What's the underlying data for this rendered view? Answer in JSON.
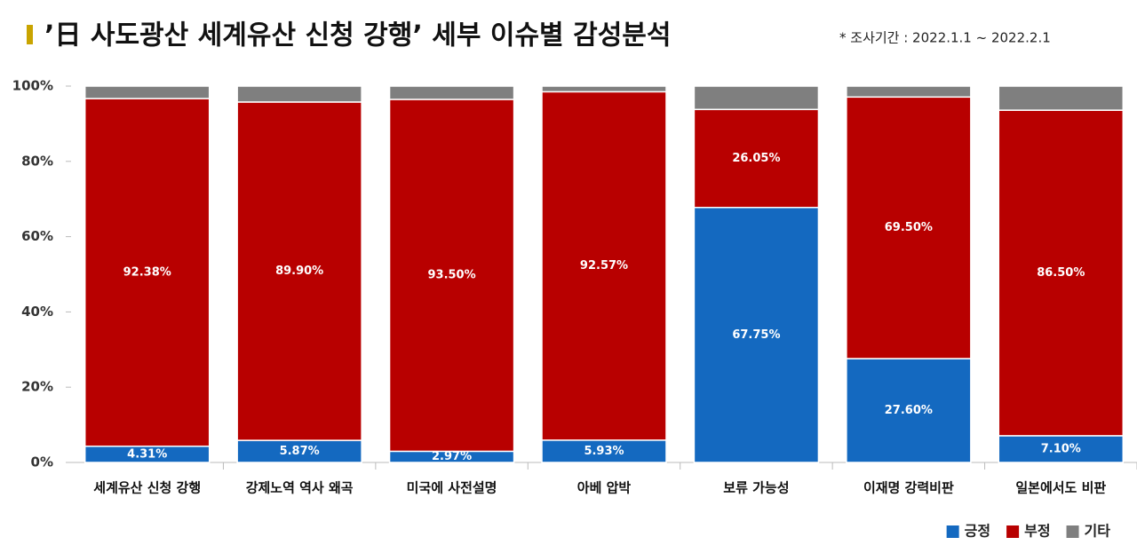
{
  "chart_data": {
    "type": "stacked_bar",
    "title": "’日 사도광산 세계유산 신청 강행’ 세부 이슈별 감성분석",
    "subtitle": "* 조사기간 : 2022.1.1 ~ 2022.2.1",
    "categories": [
      "세계유산 신청 강행",
      "강제노역 역사 왜곡",
      "미국에 사전설명",
      "아베 압박",
      "보류 가능성",
      "이재명 강력비판",
      "일본에서도 비판"
    ],
    "series": [
      {
        "name": "긍정",
        "color": "#1469c0",
        "values": [
          4.31,
          5.87,
          2.97,
          5.93,
          67.75,
          27.6,
          7.1
        ],
        "value_labels": [
          "4.31%",
          "5.87%",
          "2.97%",
          "5.93%",
          "67.75%",
          "27.60%",
          "7.10%"
        ]
      },
      {
        "name": "부정",
        "color": "#b80000",
        "values": [
          92.38,
          89.9,
          93.5,
          92.57,
          26.05,
          69.5,
          86.5
        ],
        "value_labels": [
          "92.38%",
          "89.90%",
          "93.50%",
          "92.57%",
          "26.05%",
          "69.50%",
          "86.50%"
        ]
      },
      {
        "name": "기타",
        "color": "#7f7f7f",
        "values": [
          3.31,
          4.23,
          3.53,
          1.5,
          6.2,
          2.9,
          6.4
        ]
      }
    ],
    "ylim": [
      0,
      100
    ],
    "yticks": [
      {
        "value": 0,
        "label": "0%"
      },
      {
        "value": 20,
        "label": "20%"
      },
      {
        "value": 40,
        "label": "40%"
      },
      {
        "value": 60,
        "label": "60%"
      },
      {
        "value": 80,
        "label": "80%"
      },
      {
        "value": 100,
        "label": "100%"
      }
    ],
    "legend": "bottom-right"
  }
}
